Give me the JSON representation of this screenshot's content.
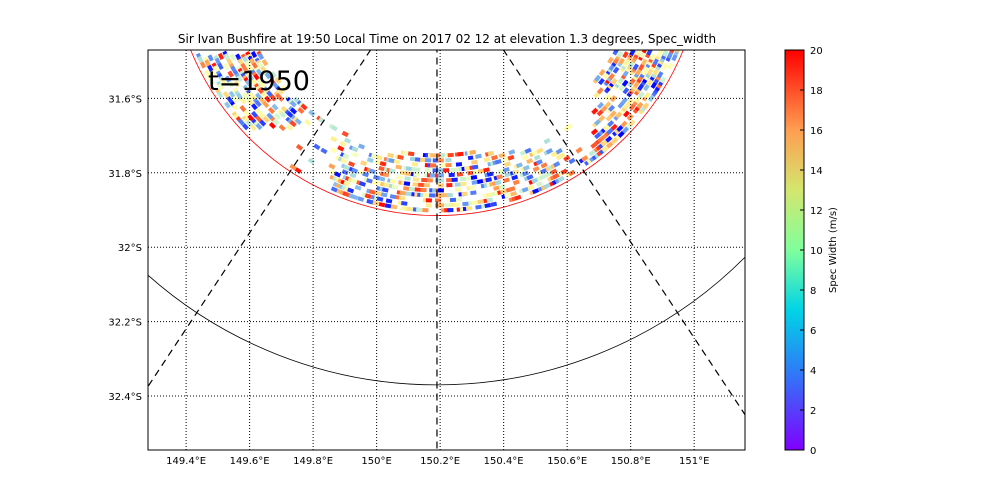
{
  "chart_data": {
    "type": "heatmap",
    "title": "Sir Ivan Bushfire at 19:50 Local Time on 2017 02 12 at elevation 1.3 degrees, Spec_width",
    "annotation": "t=1950",
    "xlabel": "",
    "ylabel": "",
    "xlim": [
      149.28,
      151.16
    ],
    "ylim": [
      -32.545,
      -31.47
    ],
    "x_ticks": [
      149.4,
      149.6,
      149.8,
      150.0,
      150.2,
      150.4,
      150.6,
      150.8,
      151.0
    ],
    "x_tick_labels": [
      "149.4°E",
      "149.6°E",
      "149.8°E",
      "150°E",
      "150.2°E",
      "150.4°E",
      "150.6°E",
      "150.8°E",
      "151°E"
    ],
    "y_ticks": [
      -31.6,
      -31.8,
      -32.0,
      -32.2,
      -32.4
    ],
    "y_tick_labels": [
      "31.6°S",
      "31.8°S",
      "32°S",
      "32.2°S",
      "32.4°S"
    ],
    "grid": true,
    "colorbar": {
      "label": "Spec Width (m/s)",
      "range": [
        0,
        20
      ],
      "ticks": [
        0,
        2,
        4,
        6,
        8,
        10,
        12,
        14,
        16,
        18,
        20
      ],
      "colormap": "rainbow",
      "position": "right"
    },
    "range_rings": [
      {
        "color": "#ff0000",
        "min_lat": -31.915
      },
      {
        "color": "#000000",
        "min_lat": -32.37
      }
    ],
    "radar_site": {
      "lon": 150.19,
      "lat": -31.2
    },
    "beam_lines": [
      {
        "to_lon": 149.26,
        "to_lat": -32.4
      },
      {
        "to_lon": 150.19,
        "to_lat": -32.545
      },
      {
        "to_lon": 151.16,
        "to_lat": -32.45
      }
    ]
  }
}
